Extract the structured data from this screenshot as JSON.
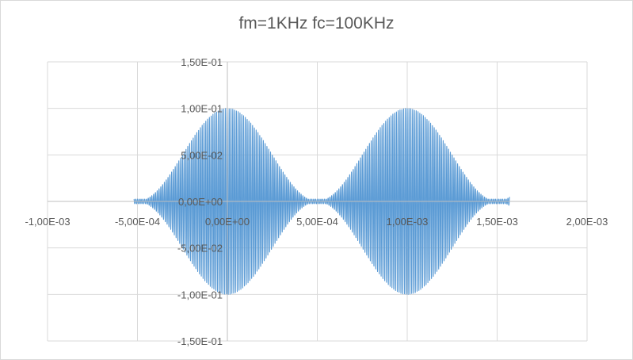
{
  "chart_data": {
    "type": "line",
    "title": "fm=1KHz fc=100KHz",
    "xlabel": "",
    "ylabel": "",
    "xlim": [
      -0.001,
      0.002
    ],
    "ylim": [
      -0.15,
      0.15
    ],
    "x_ticks": [
      -0.001,
      -0.0005,
      0.0,
      0.0005,
      0.001,
      0.0015,
      0.002
    ],
    "x_tick_labels": [
      "-1,00E-03",
      "-5,00E-04",
      "0,00E+00",
      "5,00E-04",
      "1,00E-03",
      "1,50E-03",
      "2,00E-03"
    ],
    "y_ticks": [
      0.15,
      0.1,
      0.05,
      0.0,
      -0.05,
      -0.1,
      -0.15
    ],
    "y_tick_labels": [
      "1,50E-01",
      "1,00E-01",
      "5,00E-02",
      "0,00E+00",
      "-5,00E-02",
      "-1,00E-01",
      "-1,50E-01"
    ],
    "grid": true,
    "legend": "none",
    "series_color": "#5b9bd5",
    "signal": {
      "x_range": [
        -0.00052,
        0.00157
      ],
      "modulating_frequency_hz": 1000,
      "carrier_frequency_hz": 100000,
      "envelope_peaks": [
        {
          "x": 0.0,
          "y": 0.1
        },
        {
          "x": 0.001,
          "y": 0.1
        }
      ],
      "envelope_minima": [
        {
          "x": -0.0005,
          "y": 0.0
        },
        {
          "x": 0.0005,
          "y": 0.0
        },
        {
          "x": 0.0015,
          "y": 0.0
        }
      ]
    }
  }
}
